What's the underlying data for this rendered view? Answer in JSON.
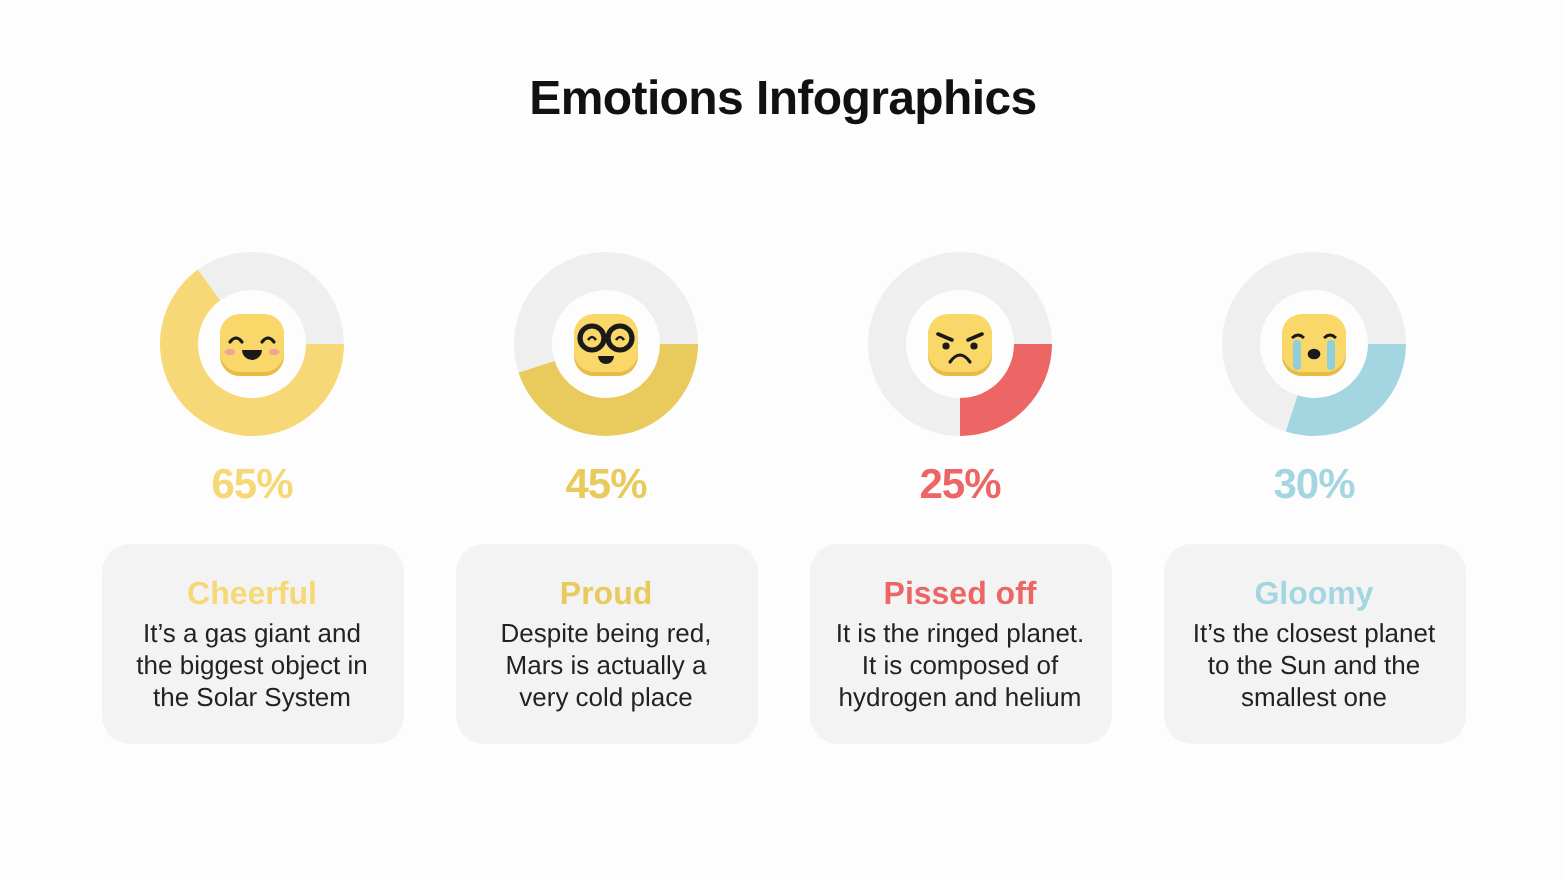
{
  "chart_data": [
    {
      "type": "donut",
      "title": "Emotions Infographics",
      "categories": [
        null,
        null
      ],
      "values": [
        65,
        35
      ],
      "colors": [
        "#f7d877",
        "#efefef"
      ],
      "value_labels": [
        "65%",
        null
      ],
      "annotations": [
        "Cheerful",
        "It’s a gas giant and the biggest object in the Solar System"
      ]
    },
    {
      "type": "donut",
      "categories": [
        null,
        null
      ],
      "values": [
        45,
        55
      ],
      "colors": [
        "#e9ca5c",
        "#efefef"
      ],
      "value_labels": [
        "45%",
        null
      ],
      "annotations": [
        "Proud",
        "Despite being red, Mars is actually a very cold place"
      ]
    },
    {
      "type": "donut",
      "categories": [
        null,
        null
      ],
      "values": [
        25,
        75
      ],
      "colors": [
        "#ec6666",
        "#efefef"
      ],
      "value_labels": [
        "25%",
        null
      ],
      "annotations": [
        "Pissed off",
        "It is the ringed planet. It is composed of hydrogen and helium"
      ]
    },
    {
      "type": "donut",
      "categories": [
        null,
        null
      ],
      "values": [
        30,
        70
      ],
      "colors": [
        "#a4d6e1",
        "#efefef"
      ],
      "value_labels": [
        "30%",
        null
      ],
      "annotations": [
        "Gloomy",
        "It’s the closest planet to the Sun and the smallest one"
      ]
    }
  ]
}
